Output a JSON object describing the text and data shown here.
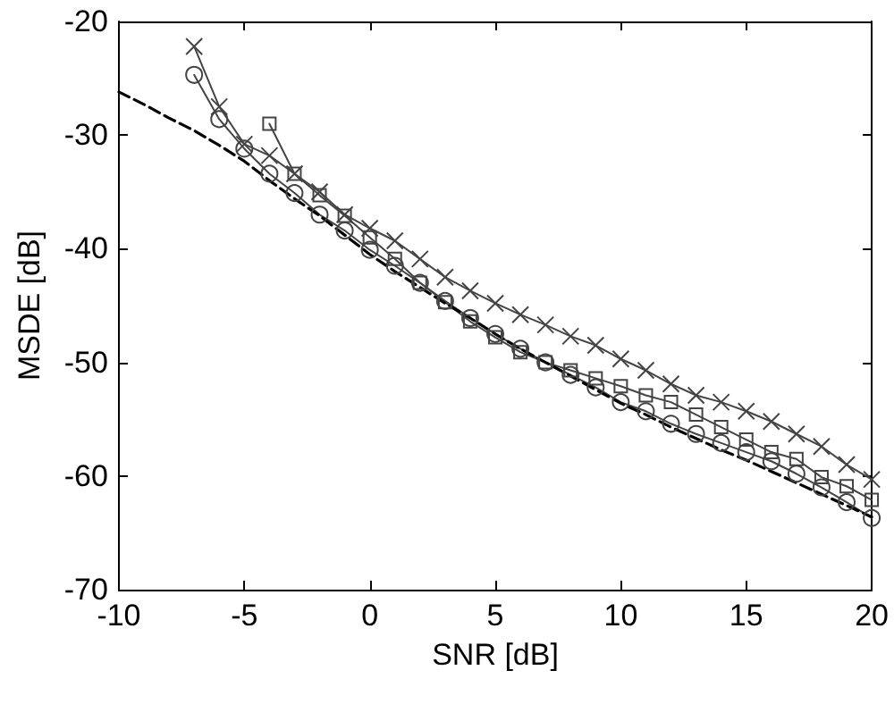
{
  "chart_data": {
    "type": "line",
    "xlabel": "SNR [dB]",
    "ylabel": "MSDE [dB]",
    "xlim": [
      -10,
      20
    ],
    "xticks": [
      -10,
      -5,
      0,
      5,
      10,
      15,
      20
    ],
    "ylim": [
      -70,
      -20
    ],
    "yticks": [
      -70,
      -60,
      -50,
      -40,
      -30,
      -20
    ],
    "grid": false,
    "series": [
      {
        "color": "#444444",
        "marker": "cross",
        "line_style": "solid",
        "x": [
          -7,
          -6,
          -5,
          -4,
          -3,
          -2,
          -1,
          0,
          1,
          2,
          3,
          4,
          5,
          6,
          7,
          8,
          9,
          10,
          11,
          12,
          13,
          14,
          15,
          16,
          17,
          18,
          19,
          20
        ],
        "values": [
          -22.2,
          -27.5,
          -30.8,
          -31.8,
          -33.4,
          -35,
          -37,
          -38.2,
          -39.3,
          -40.9,
          -42.5,
          -43.7,
          -44.8,
          -45.8,
          -46.7,
          -47.7,
          -48.5,
          -49.7,
          -50.7,
          -51.9,
          -52.9,
          -53.5,
          -54.3,
          -55.2,
          -56.3,
          -57.4,
          -59,
          -60.3
        ]
      },
      {
        "color": "#444444",
        "marker": "square",
        "line_style": "solid",
        "x": [
          -4,
          -3,
          -2,
          -1,
          0,
          1,
          2,
          3,
          4,
          5,
          6,
          7,
          8,
          9,
          10,
          11,
          12,
          13,
          14,
          15,
          16,
          17,
          18,
          19,
          20
        ],
        "values": [
          -29,
          -33.4,
          -35.3,
          -37.1,
          -39,
          -40.9,
          -43,
          -44.7,
          -46.4,
          -47.8,
          -49.1,
          -50,
          -50.7,
          -51.4,
          -52.1,
          -52.9,
          -53.5,
          -54.6,
          -55.7,
          -56.8,
          -57.9,
          -58.5,
          -60.1,
          -60.9,
          -62.1
        ]
      },
      {
        "color": "#444444",
        "marker": "circle",
        "line_style": "solid",
        "x": [
          -7,
          -6,
          -5,
          -4,
          -3,
          -2,
          -1,
          0,
          1,
          2,
          3,
          4,
          5,
          6,
          7,
          8,
          9,
          10,
          11,
          12,
          13,
          14,
          15,
          16,
          17,
          18,
          19,
          20
        ],
        "values": [
          -24.7,
          -28.6,
          -31.2,
          -33.4,
          -35.1,
          -37,
          -38.4,
          -40.1,
          -41.5,
          -43,
          -44.6,
          -46.1,
          -47.5,
          -48.8,
          -50,
          -51.1,
          -52.2,
          -53.5,
          -54.3,
          -55.4,
          -56.3,
          -57.1,
          -57.9,
          -58.7,
          -59.8,
          -61,
          -62.3,
          -63.7
        ]
      },
      {
        "color": "#000000",
        "marker": "none",
        "line_style": "dashed",
        "x": [
          -10,
          -9,
          -8,
          -7,
          -6,
          -5,
          -4,
          -3,
          -2,
          -1,
          0,
          1,
          2,
          3,
          4,
          5,
          6,
          7,
          8,
          9,
          10,
          11,
          12,
          13,
          14,
          15,
          16,
          17,
          18,
          19,
          20
        ],
        "values": [
          -26.2,
          -27.3,
          -28.5,
          -29.6,
          -30.9,
          -32.3,
          -34,
          -35.6,
          -37.1,
          -38.8,
          -40.5,
          -42,
          -43.4,
          -44.8,
          -46.1,
          -47.5,
          -48.8,
          -50,
          -51.2,
          -52.4,
          -53.6,
          -54.6,
          -55.7,
          -56.7,
          -57.7,
          -58.6,
          -59.6,
          -60.6,
          -61.6,
          -62.6,
          -63.6
        ]
      }
    ]
  }
}
